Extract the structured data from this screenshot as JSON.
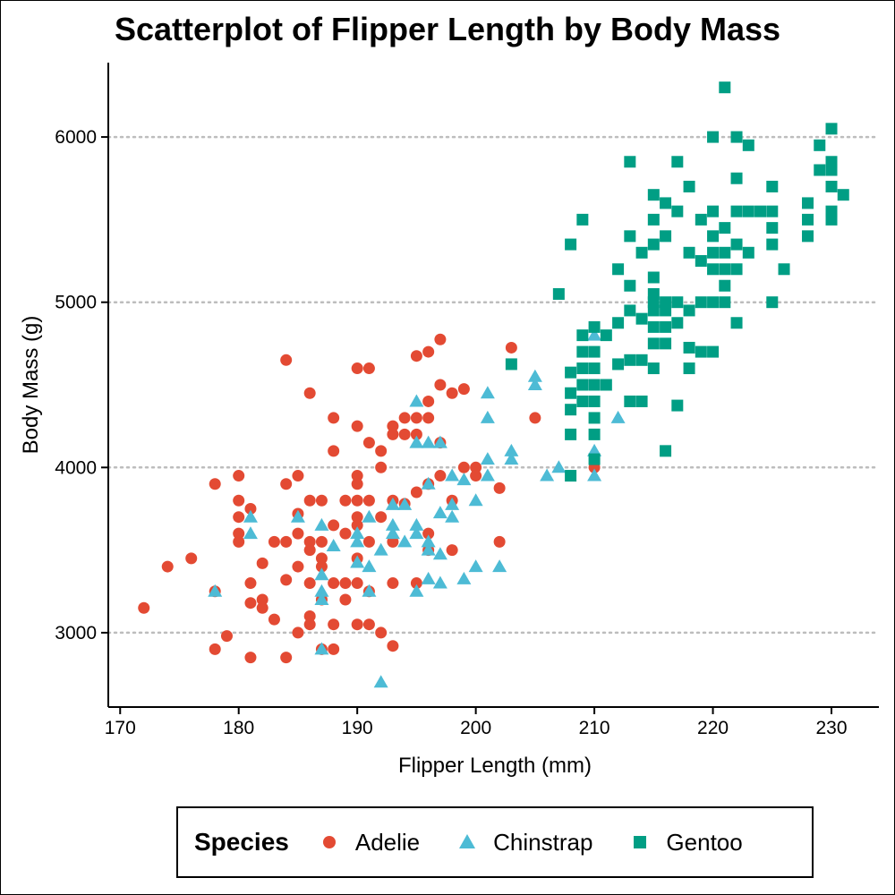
{
  "chart_data": {
    "type": "scatter",
    "title": "Scatterplot of Flipper Length by Body Mass",
    "xlabel": "Flipper Length (mm)",
    "ylabel": "Body Mass (g)",
    "xlim": [
      169,
      234
    ],
    "ylim": [
      2550,
      6450
    ],
    "x_ticks": [
      170,
      180,
      190,
      200,
      210,
      220,
      230
    ],
    "y_ticks": [
      3000,
      4000,
      5000,
      6000
    ],
    "grid": "horizontal dotted",
    "legend": {
      "title": "Species",
      "position": "bottom"
    },
    "series": [
      {
        "name": "Adelie",
        "marker": "circle",
        "color": "#E34A33",
        "points": [
          [
            172,
            3150
          ],
          [
            174,
            3400
          ],
          [
            176,
            3450
          ],
          [
            178,
            3900
          ],
          [
            178,
            3250
          ],
          [
            178,
            2900
          ],
          [
            179,
            2980
          ],
          [
            180,
            3950
          ],
          [
            180,
            3800
          ],
          [
            180,
            3700
          ],
          [
            180,
            3600
          ],
          [
            180,
            3550
          ],
          [
            181,
            3750
          ],
          [
            181,
            3300
          ],
          [
            181,
            3180
          ],
          [
            181,
            2850
          ],
          [
            182,
            3420
          ],
          [
            182,
            3200
          ],
          [
            182,
            3150
          ],
          [
            183,
            3550
          ],
          [
            183,
            3080
          ],
          [
            184,
            4650
          ],
          [
            184,
            3900
          ],
          [
            184,
            3550
          ],
          [
            184,
            3320
          ],
          [
            184,
            2850
          ],
          [
            185,
            3950
          ],
          [
            185,
            3720
          ],
          [
            185,
            3600
          ],
          [
            185,
            3400
          ],
          [
            185,
            3000
          ],
          [
            186,
            4450
          ],
          [
            186,
            3800
          ],
          [
            186,
            3550
          ],
          [
            186,
            3500
          ],
          [
            186,
            3300
          ],
          [
            186,
            3100
          ],
          [
            186,
            3050
          ],
          [
            187,
            3800
          ],
          [
            187,
            3550
          ],
          [
            187,
            3450
          ],
          [
            187,
            3400
          ],
          [
            187,
            3200
          ],
          [
            187,
            2900
          ],
          [
            188,
            4300
          ],
          [
            188,
            4100
          ],
          [
            188,
            3650
          ],
          [
            188,
            3300
          ],
          [
            188,
            3050
          ],
          [
            188,
            2900
          ],
          [
            189,
            3800
          ],
          [
            189,
            3600
          ],
          [
            189,
            3300
          ],
          [
            189,
            3200
          ],
          [
            190,
            4600
          ],
          [
            190,
            4250
          ],
          [
            190,
            3950
          ],
          [
            190,
            3900
          ],
          [
            190,
            3800
          ],
          [
            190,
            3700
          ],
          [
            190,
            3650
          ],
          [
            190,
            3450
          ],
          [
            190,
            3300
          ],
          [
            190,
            3050
          ],
          [
            191,
            4600
          ],
          [
            191,
            4150
          ],
          [
            191,
            3800
          ],
          [
            191,
            3550
          ],
          [
            191,
            3250
          ],
          [
            191,
            3050
          ],
          [
            192,
            4100
          ],
          [
            192,
            4000
          ],
          [
            192,
            3700
          ],
          [
            192,
            3000
          ],
          [
            193,
            4250
          ],
          [
            193,
            4200
          ],
          [
            193,
            3800
          ],
          [
            193,
            3550
          ],
          [
            193,
            3300
          ],
          [
            193,
            2920
          ],
          [
            194,
            4300
          ],
          [
            194,
            4200
          ],
          [
            194,
            3780
          ],
          [
            195,
            4675
          ],
          [
            195,
            4300
          ],
          [
            195,
            4200
          ],
          [
            195,
            3850
          ],
          [
            195,
            3300
          ],
          [
            196,
            4700
          ],
          [
            196,
            4400
          ],
          [
            196,
            4300
          ],
          [
            196,
            3900
          ],
          [
            196,
            3600
          ],
          [
            196,
            3500
          ],
          [
            197,
            4775
          ],
          [
            197,
            4500
          ],
          [
            197,
            4150
          ],
          [
            197,
            3950
          ],
          [
            198,
            4450
          ],
          [
            198,
            3800
          ],
          [
            198,
            3500
          ],
          [
            199,
            4475
          ],
          [
            199,
            4000
          ],
          [
            200,
            4000
          ],
          [
            200,
            3950
          ],
          [
            202,
            3875
          ],
          [
            202,
            3550
          ],
          [
            203,
            4725
          ],
          [
            205,
            4300
          ],
          [
            210,
            4000
          ]
        ]
      },
      {
        "name": "Chinstrap",
        "marker": "triangle",
        "color": "#4DBBD5",
        "points": [
          [
            178,
            3250
          ],
          [
            181,
            3700
          ],
          [
            181,
            3600
          ],
          [
            185,
            3700
          ],
          [
            187,
            3650
          ],
          [
            187,
            3350
          ],
          [
            187,
            3250
          ],
          [
            187,
            3200
          ],
          [
            187,
            2900
          ],
          [
            188,
            3525
          ],
          [
            190,
            3600
          ],
          [
            190,
            3550
          ],
          [
            190,
            3425
          ],
          [
            191,
            3700
          ],
          [
            191,
            3400
          ],
          [
            191,
            3250
          ],
          [
            192,
            3500
          ],
          [
            192,
            2700
          ],
          [
            193,
            3775
          ],
          [
            193,
            3650
          ],
          [
            193,
            3600
          ],
          [
            194,
            3775
          ],
          [
            194,
            3550
          ],
          [
            195,
            4400
          ],
          [
            195,
            4150
          ],
          [
            195,
            3650
          ],
          [
            195,
            3600
          ],
          [
            195,
            3250
          ],
          [
            196,
            4150
          ],
          [
            196,
            3900
          ],
          [
            196,
            3550
          ],
          [
            196,
            3500
          ],
          [
            196,
            3325
          ],
          [
            197,
            4150
          ],
          [
            197,
            3725
          ],
          [
            197,
            3475
          ],
          [
            197,
            3300
          ],
          [
            198,
            3950
          ],
          [
            198,
            3775
          ],
          [
            198,
            3700
          ],
          [
            199,
            3925
          ],
          [
            199,
            3325
          ],
          [
            200,
            3800
          ],
          [
            200,
            3400
          ],
          [
            201,
            4450
          ],
          [
            201,
            4300
          ],
          [
            201,
            4050
          ],
          [
            201,
            3950
          ],
          [
            202,
            3400
          ],
          [
            203,
            4100
          ],
          [
            203,
            4050
          ],
          [
            205,
            4550
          ],
          [
            205,
            4500
          ],
          [
            206,
            3950
          ],
          [
            207,
            4000
          ],
          [
            210,
            4800
          ],
          [
            210,
            4100
          ],
          [
            210,
            3950
          ],
          [
            212,
            4300
          ]
        ]
      },
      {
        "name": "Gentoo",
        "marker": "square",
        "color": "#009E84",
        "points": [
          [
            203,
            4625
          ],
          [
            207,
            5050
          ],
          [
            208,
            5350
          ],
          [
            208,
            4575
          ],
          [
            208,
            4450
          ],
          [
            208,
            4350
          ],
          [
            208,
            4200
          ],
          [
            208,
            3950
          ],
          [
            209,
            5500
          ],
          [
            209,
            4800
          ],
          [
            209,
            4700
          ],
          [
            209,
            4600
          ],
          [
            209,
            4500
          ],
          [
            209,
            4400
          ],
          [
            210,
            4850
          ],
          [
            210,
            4700
          ],
          [
            210,
            4600
          ],
          [
            210,
            4500
          ],
          [
            210,
            4400
          ],
          [
            210,
            4300
          ],
          [
            210,
            4200
          ],
          [
            210,
            4050
          ],
          [
            211,
            4500
          ],
          [
            211,
            4800
          ],
          [
            212,
            5200
          ],
          [
            212,
            4875
          ],
          [
            212,
            4625
          ],
          [
            213,
            5850
          ],
          [
            213,
            5400
          ],
          [
            213,
            5100
          ],
          [
            213,
            4950
          ],
          [
            213,
            4650
          ],
          [
            213,
            4400
          ],
          [
            214,
            5300
          ],
          [
            214,
            4900
          ],
          [
            214,
            4650
          ],
          [
            214,
            4400
          ],
          [
            215,
            5650
          ],
          [
            215,
            5500
          ],
          [
            215,
            5350
          ],
          [
            215,
            5150
          ],
          [
            215,
            5050
          ],
          [
            215,
            5000
          ],
          [
            215,
            4950
          ],
          [
            215,
            4850
          ],
          [
            215,
            4750
          ],
          [
            215,
            4600
          ],
          [
            216,
            5600
          ],
          [
            216,
            5400
          ],
          [
            216,
            5000
          ],
          [
            216,
            4950
          ],
          [
            216,
            4850
          ],
          [
            216,
            4750
          ],
          [
            216,
            4100
          ],
          [
            217,
            5850
          ],
          [
            217,
            5550
          ],
          [
            217,
            5000
          ],
          [
            217,
            4875
          ],
          [
            217,
            4375
          ],
          [
            218,
            5700
          ],
          [
            218,
            5300
          ],
          [
            218,
            4950
          ],
          [
            218,
            4725
          ],
          [
            218,
            4600
          ],
          [
            219,
            5500
          ],
          [
            219,
            5250
          ],
          [
            219,
            5000
          ],
          [
            219,
            4700
          ],
          [
            220,
            6000
          ],
          [
            220,
            5550
          ],
          [
            220,
            5400
          ],
          [
            220,
            5300
          ],
          [
            220,
            5200
          ],
          [
            220,
            5000
          ],
          [
            220,
            4700
          ],
          [
            221,
            6300
          ],
          [
            221,
            5450
          ],
          [
            221,
            5300
          ],
          [
            221,
            5200
          ],
          [
            221,
            5100
          ],
          [
            221,
            5000
          ],
          [
            222,
            6000
          ],
          [
            222,
            5750
          ],
          [
            222,
            5550
          ],
          [
            222,
            5350
          ],
          [
            222,
            5200
          ],
          [
            222,
            4875
          ],
          [
            223,
            5950
          ],
          [
            223,
            5550
          ],
          [
            223,
            5300
          ],
          [
            224,
            5550
          ],
          [
            225,
            5700
          ],
          [
            225,
            5450
          ],
          [
            225,
            5000
          ],
          [
            225,
            5550
          ],
          [
            225,
            5350
          ],
          [
            226,
            5200
          ],
          [
            228,
            5600
          ],
          [
            228,
            5500
          ],
          [
            228,
            5400
          ],
          [
            229,
            5950
          ],
          [
            229,
            5800
          ],
          [
            230,
            6050
          ],
          [
            230,
            5850
          ],
          [
            230,
            5800
          ],
          [
            230,
            5700
          ],
          [
            230,
            5550
          ],
          [
            230,
            5500
          ],
          [
            231,
            5650
          ]
        ]
      }
    ]
  }
}
